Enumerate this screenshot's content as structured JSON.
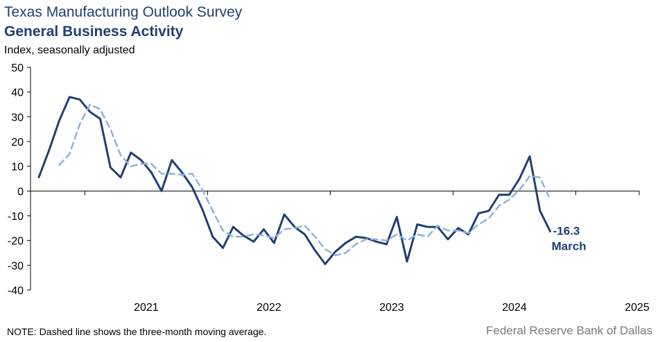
{
  "chart_data": {
    "type": "line",
    "title": "Texas Manufacturing Outlook Survey",
    "subtitle": "General Business Activity",
    "ylabel": "Index, seasonally adjusted",
    "xlabel": "",
    "ylim": [
      -40,
      50
    ],
    "yticks": [
      50,
      40,
      30,
      20,
      10,
      0,
      -10,
      -20,
      -30,
      -40
    ],
    "xticks": [
      "2021",
      "2022",
      "2023",
      "2024",
      "2025"
    ],
    "x_start": "2020-08",
    "grid": false,
    "series": [
      {
        "style": "solid",
        "color": "#1f3f73",
        "values": [
          5.6,
          16.5,
          28.5,
          38,
          37,
          32,
          29.2,
          9.5,
          5.5,
          15.5,
          12.5,
          7.5,
          0,
          12.5,
          7.5,
          1.5,
          -7.5,
          -18.5,
          -23,
          -14.5,
          -18,
          -20.5,
          -15.5,
          -21,
          -9.5,
          -14.5,
          -17.5,
          -24,
          -29.5,
          -24.5,
          -21,
          -18.5,
          -19,
          -20.5,
          -21.5,
          -10.5,
          -28.5,
          -13.5,
          -14.5,
          -14.5,
          -19.5,
          -15,
          -17.5,
          -9,
          -8,
          -1.5,
          -1.5,
          5,
          14,
          -8,
          -16.3
        ]
      },
      {
        "style": "dashed",
        "color": "#8db1e2",
        "values": [
          null,
          null,
          10.5,
          15,
          27,
          35,
          33,
          25,
          14.5,
          10,
          11,
          11,
          7,
          7,
          6.5,
          7,
          0.5,
          -8,
          -16,
          -18.5,
          -18.5,
          -17.5,
          -18,
          -19,
          -15.5,
          -15,
          -14,
          -18.5,
          -23.5,
          -26,
          -25,
          -21.5,
          -19.5,
          -19.5,
          -20,
          -17.5,
          -20,
          -17.5,
          -18.5,
          -14,
          -16,
          -16,
          -17,
          -13.5,
          -11,
          -6,
          -3.5,
          0.5,
          6,
          5.5,
          -3.5
        ]
      }
    ],
    "annotation": {
      "value": "-16.3",
      "label": "March"
    }
  },
  "note": "NOTE: Dashed line shows the three-month  moving average.",
  "source": "Federal Reserve Bank of Dallas"
}
